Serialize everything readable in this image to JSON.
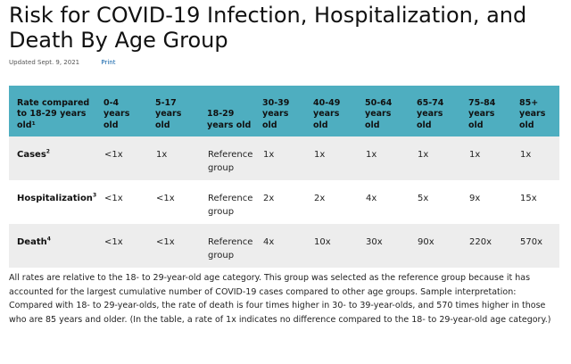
{
  "title": "Risk for COVID-19 Infection, Hospitalization, and Death By Age Group",
  "meta": {
    "updated": "Updated Sept. 9, 2021",
    "print_link": "Print"
  },
  "table": {
    "headers": [
      "Rate compared to 18-29 years old¹",
      "0-4 years old",
      "5-17 years old",
      "18-29 years old",
      "30-39 years old",
      "40-49 years old",
      "50-64 years old",
      "65-74 years old",
      "75-84 years old",
      "85+ years old"
    ],
    "rows": [
      {
        "label": "Cases",
        "sup": "2",
        "values": [
          "<1x",
          "1x",
          "Reference group",
          "1x",
          "1x",
          "1x",
          "1x",
          "1x",
          "1x"
        ]
      },
      {
        "label": "Hospitalization",
        "sup": "3",
        "values": [
          "<1x",
          "<1x",
          "Reference group",
          "2x",
          "2x",
          "4x",
          "5x",
          "9x",
          "15x"
        ]
      },
      {
        "label": "Death",
        "sup": "4",
        "values": [
          "<1x",
          "<1x",
          "Reference group",
          "4x",
          "10x",
          "30x",
          "90x",
          "220x",
          "570x"
        ]
      }
    ]
  },
  "note": "All rates are relative to the 18- to 29-year-old age category. This group was selected as the reference group because it has accounted for the largest cumulative number of COVID-19 cases compared to other age groups. Sample interpretation: Compared with 18- to 29-year-olds, the rate of death is four times higher in 30- to 39-year-olds, and 570 times higher in those who are 85 years and older. (In the table, a rate of 1x indicates no difference compared to the 18- to 29-year-old age category.)",
  "colors": {
    "header_bg": "#4eaec0",
    "shaded_row": "#ededed",
    "link": "#0a5fa8"
  }
}
